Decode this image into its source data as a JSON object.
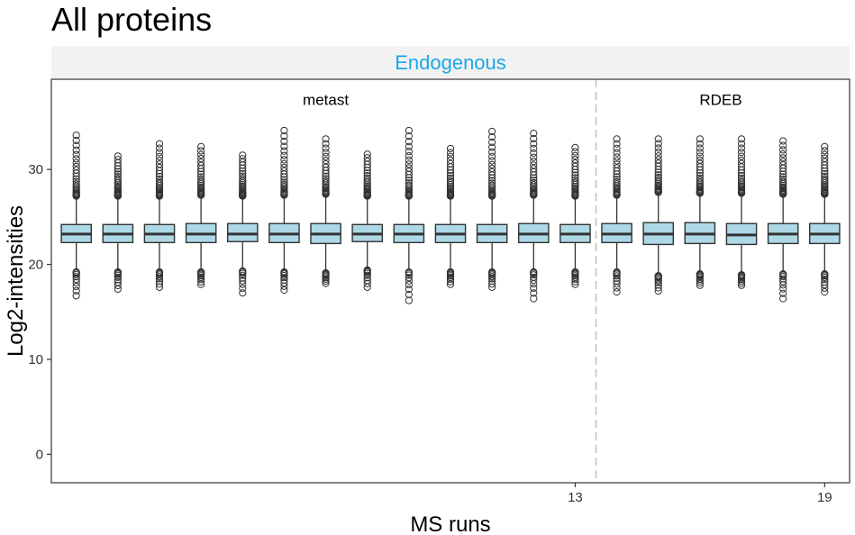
{
  "chart_data": {
    "type": "boxplot",
    "title": "All proteins",
    "facet": "Endogenous",
    "xlabel": "MS runs",
    "ylabel": "Log2-intensities",
    "ylim": [
      -3,
      39.5
    ],
    "y_ticks": [
      0,
      10,
      20,
      30
    ],
    "x_ticks": [
      13,
      19
    ],
    "x_range": [
      0.4,
      19.6
    ],
    "group_separator_x": 13.5,
    "groups": [
      {
        "name": "metast",
        "runs": [
          1,
          13
        ],
        "label_x": 7
      },
      {
        "name": "RDEB",
        "runs": [
          14,
          19
        ],
        "label_x": 16.5
      }
    ],
    "grid": false,
    "colors": {
      "box_fill": "#add8e6",
      "box_stroke": "#333333",
      "strip_bg": "#f2f2f2",
      "strip_text": "#1aa7e8",
      "separator": "#c0c0c0"
    },
    "boxes": [
      {
        "run": 1,
        "q1": 22.3,
        "median": 23.2,
        "q3": 24.2,
        "whisker_low": 19.4,
        "whisker_high": 27.0,
        "outliers_high_min": 27.2,
        "outliers_high_max": 33.6,
        "outliers_low_max": 19.2,
        "outliers_low_min": 16.7
      },
      {
        "run": 2,
        "q1": 22.3,
        "median": 23.2,
        "q3": 24.2,
        "whisker_low": 19.4,
        "whisker_high": 27.0,
        "outliers_high_min": 27.2,
        "outliers_high_max": 31.4,
        "outliers_low_max": 19.2,
        "outliers_low_min": 17.4
      },
      {
        "run": 3,
        "q1": 22.3,
        "median": 23.2,
        "q3": 24.2,
        "whisker_low": 19.4,
        "whisker_high": 27.0,
        "outliers_high_min": 27.2,
        "outliers_high_max": 32.7,
        "outliers_low_max": 19.2,
        "outliers_low_min": 17.6
      },
      {
        "run": 4,
        "q1": 22.3,
        "median": 23.2,
        "q3": 24.3,
        "whisker_low": 19.4,
        "whisker_high": 27.1,
        "outliers_high_min": 27.3,
        "outliers_high_max": 32.4,
        "outliers_low_max": 19.2,
        "outliers_low_min": 17.9
      },
      {
        "run": 5,
        "q1": 22.4,
        "median": 23.2,
        "q3": 24.3,
        "whisker_low": 19.5,
        "whisker_high": 27.0,
        "outliers_high_min": 27.2,
        "outliers_high_max": 31.5,
        "outliers_low_max": 19.3,
        "outliers_low_min": 17.0
      },
      {
        "run": 6,
        "q1": 22.3,
        "median": 23.2,
        "q3": 24.3,
        "whisker_low": 19.4,
        "whisker_high": 27.1,
        "outliers_high_min": 27.3,
        "outliers_high_max": 34.1,
        "outliers_low_max": 19.2,
        "outliers_low_min": 17.3
      },
      {
        "run": 7,
        "q1": 22.2,
        "median": 23.2,
        "q3": 24.3,
        "whisker_low": 19.3,
        "whisker_high": 27.2,
        "outliers_high_min": 27.4,
        "outliers_high_max": 33.2,
        "outliers_low_max": 19.1,
        "outliers_low_min": 18.0
      },
      {
        "run": 8,
        "q1": 22.4,
        "median": 23.2,
        "q3": 24.2,
        "whisker_low": 19.6,
        "whisker_high": 27.0,
        "outliers_high_min": 27.2,
        "outliers_high_max": 31.6,
        "outliers_low_max": 19.4,
        "outliers_low_min": 17.6
      },
      {
        "run": 9,
        "q1": 22.3,
        "median": 23.2,
        "q3": 24.2,
        "whisker_low": 19.4,
        "whisker_high": 27.0,
        "outliers_high_min": 27.2,
        "outliers_high_max": 34.1,
        "outliers_low_max": 19.2,
        "outliers_low_min": 16.2
      },
      {
        "run": 10,
        "q1": 22.3,
        "median": 23.2,
        "q3": 24.2,
        "whisker_low": 19.4,
        "whisker_high": 27.0,
        "outliers_high_min": 27.2,
        "outliers_high_max": 32.2,
        "outliers_low_max": 19.2,
        "outliers_low_min": 17.9
      },
      {
        "run": 11,
        "q1": 22.3,
        "median": 23.2,
        "q3": 24.2,
        "whisker_low": 19.4,
        "whisker_high": 27.0,
        "outliers_high_min": 27.2,
        "outliers_high_max": 34.0,
        "outliers_low_max": 19.2,
        "outliers_low_min": 17.6
      },
      {
        "run": 12,
        "q1": 22.3,
        "median": 23.2,
        "q3": 24.3,
        "whisker_low": 19.4,
        "whisker_high": 27.1,
        "outliers_high_min": 27.3,
        "outliers_high_max": 33.8,
        "outliers_low_max": 19.2,
        "outliers_low_min": 16.4
      },
      {
        "run": 13,
        "q1": 22.3,
        "median": 23.2,
        "q3": 24.2,
        "whisker_low": 19.4,
        "whisker_high": 27.0,
        "outliers_high_min": 27.2,
        "outliers_high_max": 32.3,
        "outliers_low_max": 19.2,
        "outliers_low_min": 17.9
      },
      {
        "run": 14,
        "q1": 22.3,
        "median": 23.2,
        "q3": 24.3,
        "whisker_low": 19.4,
        "whisker_high": 27.1,
        "outliers_high_min": 27.3,
        "outliers_high_max": 33.2,
        "outliers_low_max": 19.2,
        "outliers_low_min": 17.1
      },
      {
        "run": 15,
        "q1": 22.1,
        "median": 23.2,
        "q3": 24.4,
        "whisker_low": 19.0,
        "whisker_high": 27.4,
        "outliers_high_min": 27.6,
        "outliers_high_max": 33.2,
        "outliers_low_max": 18.8,
        "outliers_low_min": 17.2
      },
      {
        "run": 16,
        "q1": 22.2,
        "median": 23.2,
        "q3": 24.4,
        "whisker_low": 19.2,
        "whisker_high": 27.3,
        "outliers_high_min": 27.5,
        "outliers_high_max": 33.2,
        "outliers_low_max": 19.0,
        "outliers_low_min": 17.8
      },
      {
        "run": 17,
        "q1": 22.1,
        "median": 23.1,
        "q3": 24.3,
        "whisker_low": 19.1,
        "whisker_high": 27.3,
        "outliers_high_min": 27.5,
        "outliers_high_max": 33.2,
        "outliers_low_max": 18.9,
        "outliers_low_min": 17.8
      },
      {
        "run": 18,
        "q1": 22.2,
        "median": 23.2,
        "q3": 24.3,
        "whisker_low": 19.2,
        "whisker_high": 27.2,
        "outliers_high_min": 27.4,
        "outliers_high_max": 33.0,
        "outliers_low_max": 19.0,
        "outliers_low_min": 16.4
      },
      {
        "run": 19,
        "q1": 22.2,
        "median": 23.2,
        "q3": 24.3,
        "whisker_low": 19.2,
        "whisker_high": 27.2,
        "outliers_high_min": 27.4,
        "outliers_high_max": 32.4,
        "outliers_low_max": 19.0,
        "outliers_low_min": 17.1
      }
    ]
  }
}
